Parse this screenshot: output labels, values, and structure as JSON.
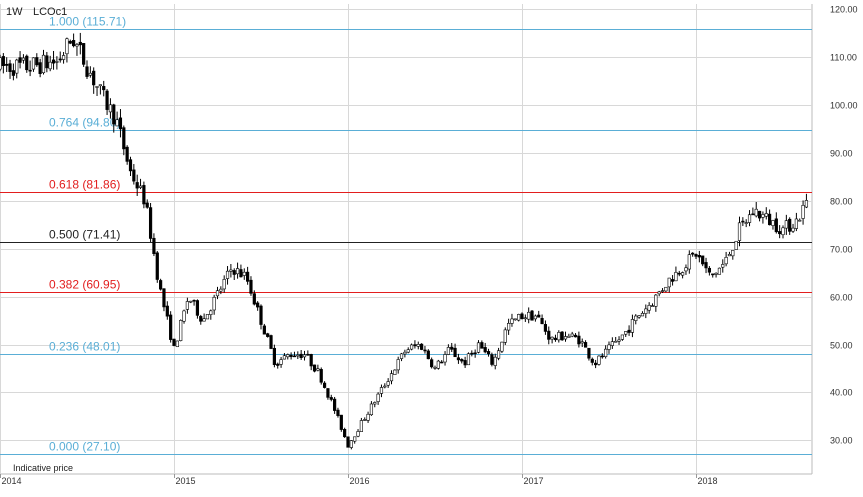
{
  "header": {
    "interval": "1W",
    "symbol": "LCOc1"
  },
  "footer": {
    "note": "Indicative price"
  },
  "colors": {
    "blue": "#5aaed6",
    "red": "#e21e1e",
    "black": "#222222",
    "grid": "#d8d8d8",
    "candle_up": "#ffffff",
    "candle_down": "#000000"
  },
  "chart_data": {
    "type": "candlestick",
    "title": "",
    "xlabel": "",
    "ylabel": "",
    "ylim": [
      23,
      121
    ],
    "xlim": [
      "2014-01",
      "2018-09"
    ],
    "grid": true,
    "y_axis_side": "right",
    "y_ticks": [
      "30.00",
      "40.00",
      "50.00",
      "60.00",
      "70.00",
      "80.00",
      "90.00",
      "100.00",
      "110.00",
      "120.00"
    ],
    "x_ticks": [
      {
        "label": "2014",
        "date": "2014-01"
      },
      {
        "label": "2015",
        "date": "2015-01"
      },
      {
        "label": "2016",
        "date": "2016-01"
      },
      {
        "label": "2017",
        "date": "2017-01"
      },
      {
        "label": "2018",
        "date": "2018-01"
      }
    ],
    "fib_levels": [
      {
        "label": "1.000 (115.71)",
        "value": 115.71,
        "color": "blue"
      },
      {
        "label": "0.764 (94.80)",
        "value": 94.8,
        "color": "blue"
      },
      {
        "label": "0.618 (81.86)",
        "value": 81.86,
        "color": "red"
      },
      {
        "label": "0.500 (71.41)",
        "value": 71.41,
        "color": "black"
      },
      {
        "label": "0.382 (60.95)",
        "value": 60.95,
        "color": "red"
      },
      {
        "label": "0.236 (48.01)",
        "value": 48.01,
        "color": "blue"
      },
      {
        "label": "0.000 (27.10)",
        "value": 27.1,
        "color": "blue"
      }
    ],
    "close_path": [
      [
        "2014-01",
        108
      ],
      [
        "2014-03",
        108
      ],
      [
        "2014-05",
        109
      ],
      [
        "2014-06",
        114
      ],
      [
        "2014-07",
        108
      ],
      [
        "2014-08",
        102
      ],
      [
        "2014-09",
        97
      ],
      [
        "2014-10",
        86
      ],
      [
        "2014-11",
        80
      ],
      [
        "2014-12",
        62
      ],
      [
        "2015-01",
        49
      ],
      [
        "2015-02",
        60
      ],
      [
        "2015-03",
        55
      ],
      [
        "2015-05",
        66
      ],
      [
        "2015-06",
        64
      ],
      [
        "2015-07",
        55
      ],
      [
        "2015-08",
        46
      ],
      [
        "2015-09",
        48
      ],
      [
        "2015-10",
        48
      ],
      [
        "2015-11",
        44
      ],
      [
        "2015-12",
        37
      ],
      [
        "2016-01",
        29
      ],
      [
        "2016-02",
        34
      ],
      [
        "2016-03",
        39
      ],
      [
        "2016-04",
        44
      ],
      [
        "2016-05",
        49
      ],
      [
        "2016-06",
        50
      ],
      [
        "2016-07",
        45
      ],
      [
        "2016-08",
        49
      ],
      [
        "2016-09",
        46
      ],
      [
        "2016-10",
        50
      ],
      [
        "2016-11",
        46
      ],
      [
        "2016-12",
        54
      ],
      [
        "2017-01",
        56
      ],
      [
        "2017-02",
        56
      ],
      [
        "2017-03",
        51
      ],
      [
        "2017-04",
        52
      ],
      [
        "2017-05",
        51
      ],
      [
        "2017-06",
        46
      ],
      [
        "2017-07",
        49
      ],
      [
        "2017-08",
        52
      ],
      [
        "2017-09",
        56
      ],
      [
        "2017-10",
        59
      ],
      [
        "2017-11",
        63
      ],
      [
        "2017-12",
        66
      ],
      [
        "2018-01",
        69
      ],
      [
        "2018-02",
        64
      ],
      [
        "2018-03",
        67
      ],
      [
        "2018-04",
        74
      ],
      [
        "2018-05",
        78
      ],
      [
        "2018-06",
        76
      ],
      [
        "2018-07",
        74
      ],
      [
        "2018-08",
        76
      ],
      [
        "2018-09",
        82
      ]
    ]
  }
}
